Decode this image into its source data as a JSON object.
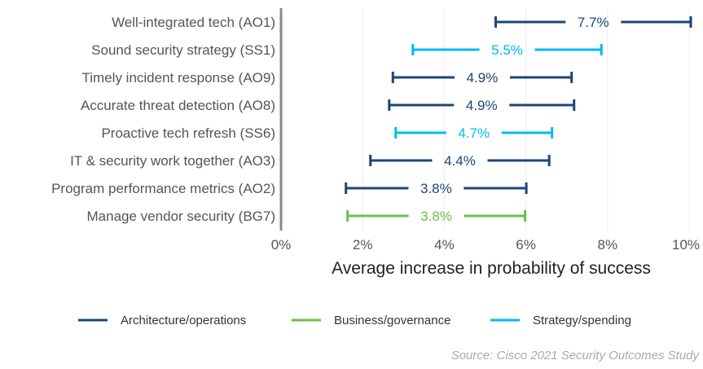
{
  "chart_data": {
    "type": "interval",
    "xlabel": "Average increase in probability of success",
    "xlim": [
      0,
      10
    ],
    "xticks": [
      "0%",
      "2%",
      "4%",
      "6%",
      "8%",
      "10%"
    ],
    "grid": "vertical",
    "legend_position": "bottom",
    "colors": {
      "Architecture/operations": "#1e4677",
      "Business/governance": "#6cbf4a",
      "Strategy/spending": "#00bceb"
    },
    "legend": [
      "Architecture/operations",
      "Business/governance",
      "Strategy/spending"
    ],
    "rows": [
      {
        "label": "Well-integrated tech (AO1)",
        "group": "Architecture/operations",
        "value_label": "7.7%",
        "value": 7.7,
        "low": 5.26,
        "high": 10.04
      },
      {
        "label": "Sound security strategy (SS1)",
        "group": "Strategy/spending",
        "value_label": "5.5%",
        "value": 5.5,
        "low": 3.23,
        "high": 7.85
      },
      {
        "label": "Timely incident response (AO9)",
        "group": "Architecture/operations",
        "value_label": "4.9%",
        "value": 4.9,
        "low": 2.74,
        "high": 7.12
      },
      {
        "label": "Accurate threat detection (AO8)",
        "group": "Architecture/operations",
        "value_label": "4.9%",
        "value": 4.9,
        "low": 2.65,
        "high": 7.18
      },
      {
        "label": "Proactive tech refresh (SS6)",
        "group": "Strategy/spending",
        "value_label": "4.7%",
        "value": 4.7,
        "low": 2.81,
        "high": 6.64
      },
      {
        "label": "IT & security work together (AO3)",
        "group": "Architecture/operations",
        "value_label": "4.4%",
        "value": 4.4,
        "low": 2.19,
        "high": 6.57
      },
      {
        "label": "Program performance metrics (AO2)",
        "group": "Architecture/operations",
        "value_label": "3.8%",
        "value": 3.8,
        "low": 1.59,
        "high": 6.01
      },
      {
        "label": "Manage vendor security (BG7)",
        "group": "Business/governance",
        "value_label": "3.8%",
        "value": 3.8,
        "low": 1.63,
        "high": 5.98
      }
    ],
    "source": "Source: Cisco 2021 Security Outcomes Study"
  }
}
